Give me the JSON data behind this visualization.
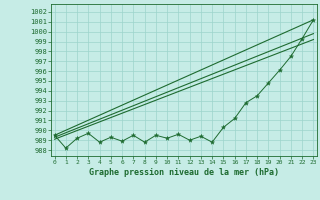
{
  "x": [
    0,
    1,
    2,
    3,
    4,
    5,
    6,
    7,
    8,
    9,
    10,
    11,
    12,
    13,
    14,
    15,
    16,
    17,
    18,
    19,
    20,
    21,
    22,
    23
  ],
  "zigzag_values": [
    989.5,
    988.2,
    989.2,
    989.7,
    988.8,
    989.3,
    988.9,
    989.5,
    988.8,
    989.5,
    989.2,
    989.6,
    989.0,
    989.4,
    988.8,
    990.3,
    991.2,
    992.8,
    993.5,
    994.8,
    996.1,
    997.5,
    999.3,
    1001.2
  ],
  "trend_upper": [
    989.5,
    1001.2
  ],
  "trend_mid": [
    989.3,
    999.8
  ],
  "trend_lower": [
    989.1,
    999.2
  ],
  "trend_x": [
    0,
    23
  ],
  "background_color": "#c6ece6",
  "grid_color": "#9dd4cc",
  "line_color": "#1e6b30",
  "xlabel": "Graphe pression niveau de la mer (hPa)",
  "xlim": [
    -0.3,
    23.3
  ],
  "ylim": [
    987.4,
    1002.8
  ],
  "yticks": [
    988,
    989,
    990,
    991,
    992,
    993,
    994,
    995,
    996,
    997,
    998,
    999,
    1000,
    1001,
    1002
  ],
  "xticks": [
    0,
    1,
    2,
    3,
    4,
    5,
    6,
    7,
    8,
    9,
    10,
    11,
    12,
    13,
    14,
    15,
    16,
    17,
    18,
    19,
    20,
    21,
    22,
    23
  ]
}
